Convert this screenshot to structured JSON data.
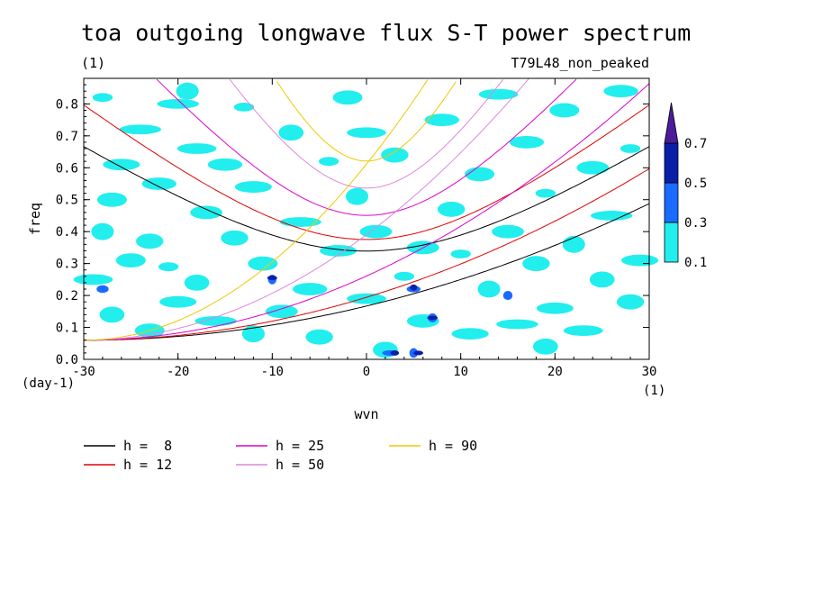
{
  "chart_data": {
    "type": "heatmap",
    "title": "toa outgoing longwave flux S-T power spectrum",
    "subtitle_left": "(1)",
    "subtitle_right": "T79L48_non_peaked",
    "xlabel": "wvn",
    "ylabel": "freq",
    "x_unit_label": "(1)",
    "y_unit_label": "(day-1)",
    "xlim": [
      -30,
      30
    ],
    "ylim": [
      0,
      0.88
    ],
    "x_ticks": [
      -30,
      -20,
      -10,
      0,
      10,
      20,
      30
    ],
    "y_ticks": [
      0.0,
      0.1,
      0.2,
      0.3,
      0.4,
      0.5,
      0.6,
      0.7,
      0.8
    ],
    "x_tick_labels": [
      "-30",
      "-20",
      "-10",
      "0",
      "10",
      "20",
      "30"
    ],
    "y_tick_labels": [
      "0.0",
      "0.1",
      "0.2",
      "0.3",
      "0.4",
      "0.5",
      "0.6",
      "0.7",
      "0.8"
    ],
    "colorbar": {
      "levels": [
        0.1,
        0.3,
        0.5,
        0.7
      ],
      "labels": [
        "0.1",
        "0.3",
        "0.5",
        "0.7"
      ],
      "colors": [
        "#22eeee",
        "#1a6bff",
        "#0a1fa8",
        "#4a1c9a"
      ]
    },
    "dispersion_curves": [
      {
        "name": "h =  8",
        "h": 8,
        "color": "#000000"
      },
      {
        "name": "h = 12",
        "h": 12,
        "color": "#e00000"
      },
      {
        "name": "h = 25",
        "h": 25,
        "color": "#dd00cc"
      },
      {
        "name": "h = 50",
        "h": 50,
        "color": "#dd88dd"
      },
      {
        "name": "h = 90",
        "h": 90,
        "color": "#f0c800"
      }
    ],
    "contour_cells": [
      {
        "x": -28,
        "y": 0.82,
        "level": 0.1
      },
      {
        "x": -26,
        "y": 0.61,
        "level": 0.1
      },
      {
        "x": -27,
        "y": 0.5,
        "level": 0.1
      },
      {
        "x": -28,
        "y": 0.4,
        "level": 0.1
      },
      {
        "x": -29,
        "y": 0.25,
        "level": 0.1
      },
      {
        "x": -28,
        "y": 0.22,
        "level": 0.3
      },
      {
        "x": -27,
        "y": 0.14,
        "level": 0.1
      },
      {
        "x": -24,
        "y": 0.72,
        "level": 0.1
      },
      {
        "x": -22,
        "y": 0.55,
        "level": 0.1
      },
      {
        "x": -23,
        "y": 0.37,
        "level": 0.1
      },
      {
        "x": -21,
        "y": 0.29,
        "level": 0.1
      },
      {
        "x": -20,
        "y": 0.18,
        "level": 0.1
      },
      {
        "x": -23,
        "y": 0.09,
        "level": 0.1
      },
      {
        "x": -19,
        "y": 0.84,
        "level": 0.1
      },
      {
        "x": -18,
        "y": 0.66,
        "level": 0.1
      },
      {
        "x": -17,
        "y": 0.46,
        "level": 0.1
      },
      {
        "x": -18,
        "y": 0.24,
        "level": 0.1
      },
      {
        "x": -16,
        "y": 0.12,
        "level": 0.1
      },
      {
        "x": -15,
        "y": 0.61,
        "level": 0.1
      },
      {
        "x": -14,
        "y": 0.38,
        "level": 0.1
      },
      {
        "x": -13,
        "y": 0.79,
        "level": 0.1
      },
      {
        "x": -12,
        "y": 0.54,
        "level": 0.1
      },
      {
        "x": -11,
        "y": 0.3,
        "level": 0.1
      },
      {
        "x": -10,
        "y": 0.25,
        "level": 0.3
      },
      {
        "x": -10,
        "y": 0.255,
        "level": 0.5
      },
      {
        "x": -9,
        "y": 0.15,
        "level": 0.1
      },
      {
        "x": -8,
        "y": 0.71,
        "level": 0.1
      },
      {
        "x": -7,
        "y": 0.43,
        "level": 0.1
      },
      {
        "x": -6,
        "y": 0.22,
        "level": 0.1
      },
      {
        "x": -5,
        "y": 0.07,
        "level": 0.1
      },
      {
        "x": -4,
        "y": 0.62,
        "level": 0.1
      },
      {
        "x": -3,
        "y": 0.34,
        "level": 0.1
      },
      {
        "x": -2,
        "y": 0.82,
        "level": 0.1
      },
      {
        "x": -1,
        "y": 0.51,
        "level": 0.1
      },
      {
        "x": 0,
        "y": 0.19,
        "level": 0.1
      },
      {
        "x": 1,
        "y": 0.4,
        "level": 0.1
      },
      {
        "x": 2,
        "y": 0.03,
        "level": 0.1
      },
      {
        "x": 2.5,
        "y": 0.02,
        "level": 0.3
      },
      {
        "x": 3,
        "y": 0.02,
        "level": 0.5
      },
      {
        "x": 3,
        "y": 0.64,
        "level": 0.1
      },
      {
        "x": 4,
        "y": 0.26,
        "level": 0.1
      },
      {
        "x": 5,
        "y": 0.22,
        "level": 0.3
      },
      {
        "x": 5,
        "y": 0.225,
        "level": 0.5
      },
      {
        "x": 5,
        "y": 0.02,
        "level": 0.3
      },
      {
        "x": 5.5,
        "y": 0.02,
        "level": 0.5
      },
      {
        "x": 6,
        "y": 0.12,
        "level": 0.1
      },
      {
        "x": 7,
        "y": 0.13,
        "level": 0.3
      },
      {
        "x": 7,
        "y": 0.13,
        "level": 0.5
      },
      {
        "x": 8,
        "y": 0.75,
        "level": 0.1
      },
      {
        "x": 9,
        "y": 0.47,
        "level": 0.1
      },
      {
        "x": 10,
        "y": 0.33,
        "level": 0.1
      },
      {
        "x": 11,
        "y": 0.08,
        "level": 0.1
      },
      {
        "x": 12,
        "y": 0.58,
        "level": 0.1
      },
      {
        "x": 13,
        "y": 0.22,
        "level": 0.1
      },
      {
        "x": 14,
        "y": 0.83,
        "level": 0.1
      },
      {
        "x": 15,
        "y": 0.4,
        "level": 0.1
      },
      {
        "x": 15,
        "y": 0.2,
        "level": 0.3
      },
      {
        "x": 16,
        "y": 0.11,
        "level": 0.1
      },
      {
        "x": 17,
        "y": 0.68,
        "level": 0.1
      },
      {
        "x": 18,
        "y": 0.3,
        "level": 0.1
      },
      {
        "x": 19,
        "y": 0.52,
        "level": 0.1
      },
      {
        "x": 20,
        "y": 0.16,
        "level": 0.1
      },
      {
        "x": 21,
        "y": 0.78,
        "level": 0.1
      },
      {
        "x": 22,
        "y": 0.36,
        "level": 0.1
      },
      {
        "x": 23,
        "y": 0.09,
        "level": 0.1
      },
      {
        "x": 24,
        "y": 0.6,
        "level": 0.1
      },
      {
        "x": 25,
        "y": 0.25,
        "level": 0.1
      },
      {
        "x": 26,
        "y": 0.45,
        "level": 0.1
      },
      {
        "x": 27,
        "y": 0.84,
        "level": 0.1
      },
      {
        "x": 28,
        "y": 0.18,
        "level": 0.1
      },
      {
        "x": 28,
        "y": 0.66,
        "level": 0.1
      },
      {
        "x": 29,
        "y": 0.31,
        "level": 0.1
      },
      {
        "x": -25,
        "y": 0.31,
        "level": 0.1
      },
      {
        "x": -12,
        "y": 0.08,
        "level": 0.1
      },
      {
        "x": 0,
        "y": 0.71,
        "level": 0.1
      },
      {
        "x": 6,
        "y": 0.35,
        "level": 0.1
      },
      {
        "x": 19,
        "y": 0.04,
        "level": 0.1
      },
      {
        "x": -20,
        "y": 0.8,
        "level": 0.1
      }
    ]
  }
}
